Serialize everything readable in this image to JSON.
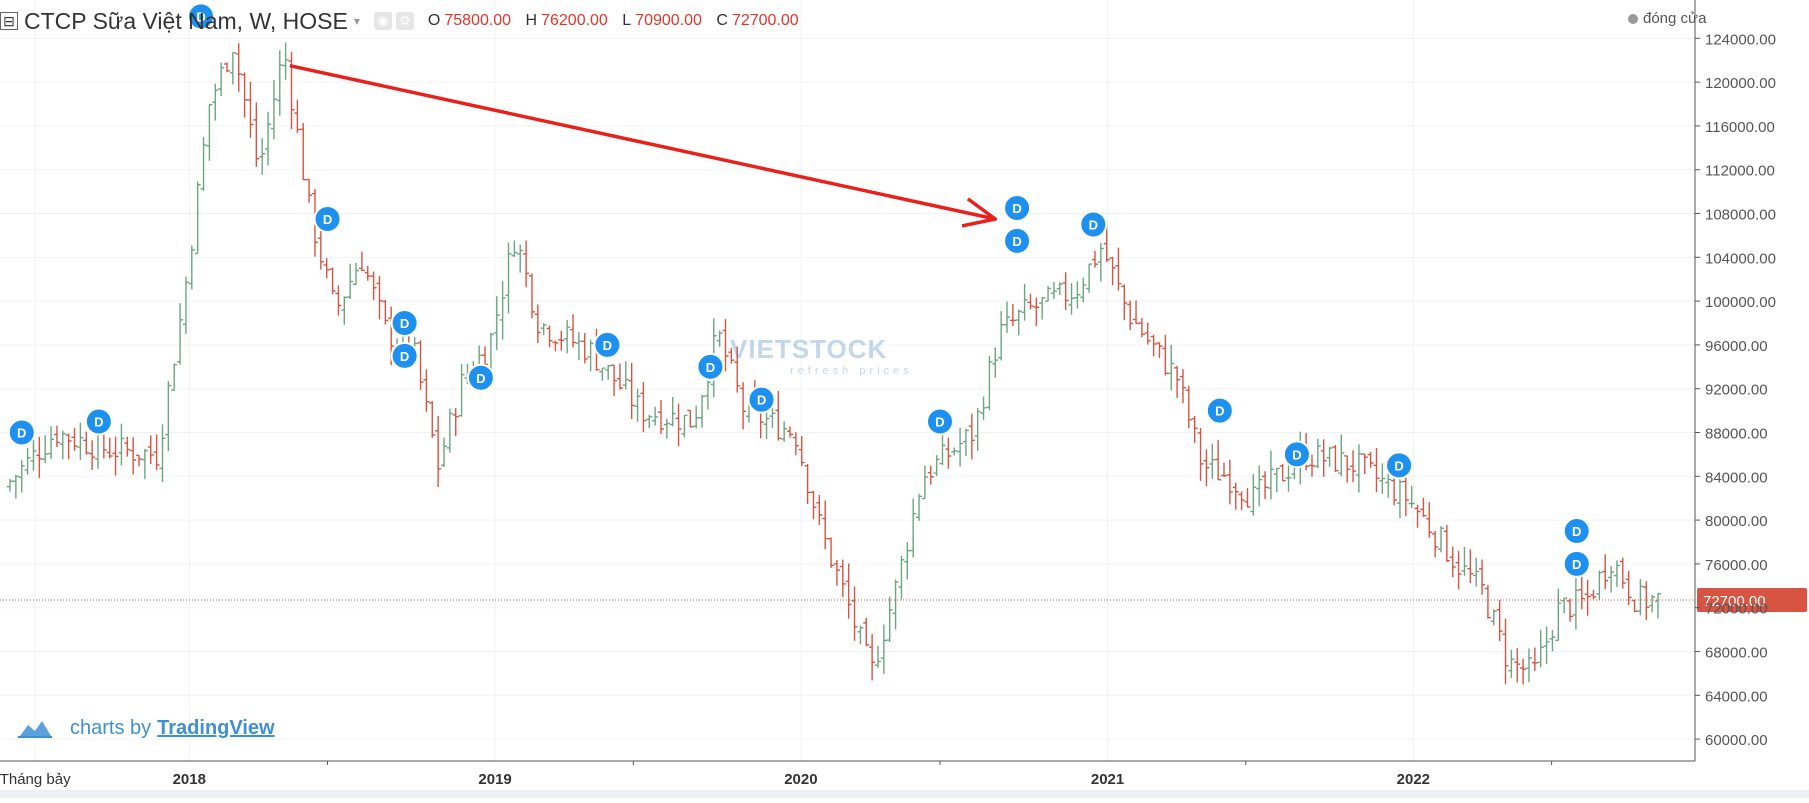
{
  "header": {
    "symbol_title": "CTCP Sữa Việt Nam, W, HOSE",
    "collapse_glyph": "⊟",
    "caret_glyph": "▾",
    "ohlc": [
      {
        "key": "O",
        "value": "75800.00"
      },
      {
        "key": "H",
        "value": "76200.00"
      },
      {
        "key": "L",
        "value": "70900.00"
      },
      {
        "key": "C",
        "value": "72700.00"
      }
    ],
    "close_legend": "đóng cửa"
  },
  "branding": {
    "prefix": "charts by",
    "link": "TradingView"
  },
  "watermark": {
    "name": "VIETSTOCK",
    "tagline": "refresh prices"
  },
  "colors": {
    "up": "#6ba583",
    "down": "#d75442",
    "dividend": "#1e90f0",
    "price_line": "#d75442",
    "annotation_arrow": "#e8211c",
    "grid": "#f0f3f5"
  },
  "chart_data": {
    "type": "bar",
    "title": "CTCP Sữa Việt Nam, W, HOSE",
    "interval": "W",
    "ylim": [
      58000,
      127500
    ],
    "y_ticks": [
      60000,
      64000,
      68000,
      72000,
      76000,
      80000,
      84000,
      88000,
      92000,
      96000,
      100000,
      104000,
      108000,
      112000,
      116000,
      120000,
      124000
    ],
    "x_ticks": [
      {
        "label": "Tháng bảy",
        "date": "2017-07",
        "bold": false
      },
      {
        "label": "2018",
        "date": "2018-01",
        "bold": true
      },
      {
        "label": "2019",
        "date": "2019-01",
        "bold": true
      },
      {
        "label": "2020",
        "date": "2020-01",
        "bold": true
      },
      {
        "label": "2021",
        "date": "2021-01",
        "bold": true
      },
      {
        "label": "2022",
        "date": "2022-01",
        "bold": true
      }
    ],
    "last_price": 72700,
    "last_price_label": "72700.00",
    "dividend_marker": "D",
    "dividend_markers": [
      {
        "date": "2017-06",
        "price": 88000
      },
      {
        "date": "2017-09",
        "price": 89000
      },
      {
        "date": "2018-01",
        "price": 126000
      },
      {
        "date": "2018-06",
        "price": 107500
      },
      {
        "date": "2018-09",
        "price": 98000
      },
      {
        "date": "2018-09",
        "price": 95000
      },
      {
        "date": "2018-12",
        "price": 93000
      },
      {
        "date": "2019-05",
        "price": 96000
      },
      {
        "date": "2019-09",
        "price": 94000
      },
      {
        "date": "2019-11",
        "price": 91000
      },
      {
        "date": "2020-06",
        "price": 89000
      },
      {
        "date": "2020-09",
        "price": 108500
      },
      {
        "date": "2020-09",
        "price": 105500
      },
      {
        "date": "2020-12",
        "price": 107000
      },
      {
        "date": "2021-05",
        "price": 90000
      },
      {
        "date": "2021-08",
        "price": 86000
      },
      {
        "date": "2021-12",
        "price": 85000
      },
      {
        "date": "2022-07",
        "price": 79000
      },
      {
        "date": "2022-07",
        "price": 76000
      }
    ],
    "annotation_arrow": {
      "from": {
        "date": "2018-05",
        "price": 121500
      },
      "to": {
        "date": "2020-08",
        "price": 107500
      }
    },
    "price_path": [
      {
        "date": "2017-06",
        "price": 83000
      },
      {
        "date": "2017-08",
        "price": 88000
      },
      {
        "date": "2017-10",
        "price": 86500
      },
      {
        "date": "2017-12",
        "price": 86000
      },
      {
        "date": "2018-01",
        "price": 100000
      },
      {
        "date": "2018-02",
        "price": 118000
      },
      {
        "date": "2018-03",
        "price": 123500
      },
      {
        "date": "2018-04",
        "price": 112000
      },
      {
        "date": "2018-05",
        "price": 123000
      },
      {
        "date": "2018-06",
        "price": 108000
      },
      {
        "date": "2018-07",
        "price": 99000
      },
      {
        "date": "2018-08",
        "price": 104000
      },
      {
        "date": "2018-09",
        "price": 97000
      },
      {
        "date": "2018-10",
        "price": 96000
      },
      {
        "date": "2018-11",
        "price": 85000
      },
      {
        "date": "2018-12",
        "price": 93000
      },
      {
        "date": "2019-01",
        "price": 96000
      },
      {
        "date": "2019-02",
        "price": 106000
      },
      {
        "date": "2019-03",
        "price": 98000
      },
      {
        "date": "2019-05",
        "price": 95500
      },
      {
        "date": "2019-07",
        "price": 90000
      },
      {
        "date": "2019-09",
        "price": 89000
      },
      {
        "date": "2019-10",
        "price": 97000
      },
      {
        "date": "2019-11",
        "price": 90000
      },
      {
        "date": "2020-01",
        "price": 88000
      },
      {
        "date": "2020-02",
        "price": 79000
      },
      {
        "date": "2020-03",
        "price": 73000
      },
      {
        "date": "2020-04",
        "price": 66000
      },
      {
        "date": "2020-05",
        "price": 74000
      },
      {
        "date": "2020-06",
        "price": 84000
      },
      {
        "date": "2020-07",
        "price": 86000
      },
      {
        "date": "2020-08",
        "price": 88000
      },
      {
        "date": "2020-09",
        "price": 97000
      },
      {
        "date": "2020-10",
        "price": 99000
      },
      {
        "date": "2020-12",
        "price": 101000
      },
      {
        "date": "2021-01",
        "price": 105000
      },
      {
        "date": "2021-02",
        "price": 99000
      },
      {
        "date": "2021-03",
        "price": 96000
      },
      {
        "date": "2021-04",
        "price": 93000
      },
      {
        "date": "2021-05",
        "price": 85000
      },
      {
        "date": "2021-06",
        "price": 84000
      },
      {
        "date": "2021-07",
        "price": 82000
      },
      {
        "date": "2021-08",
        "price": 84000
      },
      {
        "date": "2021-09",
        "price": 86000
      },
      {
        "date": "2021-11",
        "price": 85000
      },
      {
        "date": "2021-12",
        "price": 83500
      },
      {
        "date": "2022-01",
        "price": 82000
      },
      {
        "date": "2022-02",
        "price": 79000
      },
      {
        "date": "2022-03",
        "price": 76000
      },
      {
        "date": "2022-04",
        "price": 73500
      },
      {
        "date": "2022-05",
        "price": 67000
      },
      {
        "date": "2022-06",
        "price": 66000
      },
      {
        "date": "2022-07",
        "price": 72000
      },
      {
        "date": "2022-08",
        "price": 72500
      },
      {
        "date": "2022-09",
        "price": 76500
      },
      {
        "date": "2022-10",
        "price": 72700
      }
    ]
  }
}
